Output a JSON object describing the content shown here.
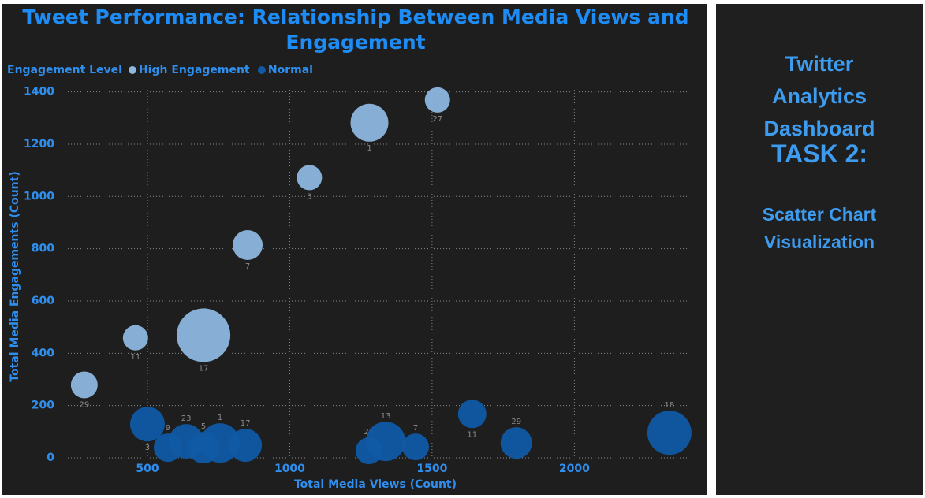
{
  "chart_data": {
    "type": "scatter",
    "title": "Tweet Performance: Relationship Between Media Views and Engagement",
    "x_label": "Total Media Views (Count)",
    "y_label": "Total Media Engagements (Count)",
    "legend_title": "Engagement Level",
    "legend_position": "top-left",
    "grid": true,
    "xlim": [
      198,
      2398
    ],
    "xticks": [
      500,
      1000,
      1500,
      2000
    ],
    "ylim": [
      0,
      1420
    ],
    "yticks": [
      0,
      200,
      400,
      600,
      800,
      1000,
      1200,
      1400
    ],
    "series": [
      {
        "name": "High Engagement",
        "color": "#8db7df",
        "x": [
          278,
          458,
          697,
          852,
          1069,
          1280,
          1519
        ],
        "values": [
          279,
          459,
          469,
          814,
          1072,
          1282,
          1369
        ],
        "sizes": [
          17,
          16,
          34,
          19,
          16,
          24,
          16
        ],
        "labels": [
          29,
          11,
          17,
          7,
          3,
          1,
          27
        ]
      },
      {
        "name": "Normal",
        "color": "#105aa5",
        "x": [
          500,
          572,
          636,
          697,
          755,
          844,
          1278,
          1337,
          1442,
          1641,
          1796,
          2334
        ],
        "values": [
          129,
          39,
          63,
          39,
          57,
          48,
          27,
          63,
          42,
          168,
          57,
          96
        ],
        "sizes": [
          22,
          18,
          22,
          20,
          25,
          21,
          17,
          25,
          17,
          18,
          20,
          28
        ],
        "labels": [
          3,
          9,
          23,
          5,
          1,
          17,
          25,
          13,
          7,
          11,
          29,
          18
        ]
      }
    ]
  },
  "side_panel": {
    "heading": "Twitter Analytics Dashboard",
    "task": "TASK 2:",
    "subtitle": "Scatter Chart Visualization"
  }
}
